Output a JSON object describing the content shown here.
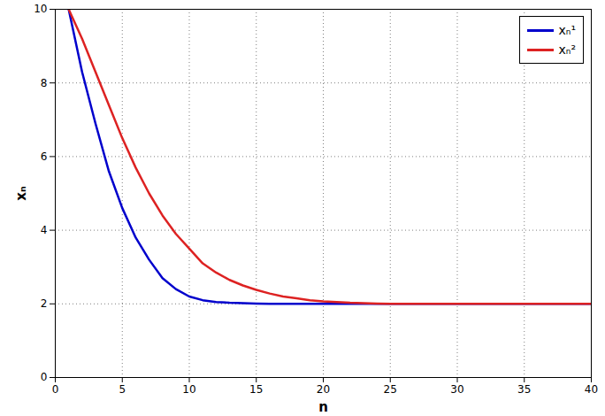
{
  "chart_data": {
    "type": "line",
    "x_label": "n",
    "y_label": "xₙ",
    "x": [
      1,
      2,
      3,
      4,
      5,
      6,
      7,
      8,
      9,
      10,
      11,
      12,
      13,
      14,
      15,
      16,
      17,
      18,
      19,
      20,
      21,
      22,
      23,
      24,
      25,
      26,
      27,
      28,
      29,
      30,
      31,
      32,
      33,
      34,
      35,
      36,
      37,
      38,
      39,
      40
    ],
    "series": [
      {
        "name": "xₙ¹",
        "color": "#0000cc",
        "values": [
          10,
          8.3,
          6.9,
          5.6,
          4.6,
          3.8,
          3.2,
          2.7,
          2.4,
          2.2,
          2.1,
          2.05,
          2.03,
          2.02,
          2.01,
          2,
          2,
          2,
          2,
          2,
          2,
          2,
          2,
          2,
          2,
          2,
          2,
          2,
          2,
          2,
          2,
          2,
          2,
          2,
          2,
          2,
          2,
          2,
          2,
          2
        ]
      },
      {
        "name": "xₙ²",
        "color": "#dd2222",
        "values": [
          10,
          9.2,
          8.3,
          7.4,
          6.5,
          5.7,
          5.0,
          4.4,
          3.9,
          3.5,
          3.1,
          2.85,
          2.65,
          2.5,
          2.38,
          2.28,
          2.2,
          2.15,
          2.1,
          2.07,
          2.05,
          2.03,
          2.02,
          2.01,
          2,
          2,
          2,
          2,
          2,
          2,
          2,
          2,
          2,
          2,
          2,
          2,
          2,
          2,
          2,
          2
        ]
      }
    ],
    "xlim": [
      0,
      40
    ],
    "xticks": [
      0,
      5,
      10,
      15,
      20,
      25,
      30,
      35,
      40
    ],
    "ylim": [
      0,
      10
    ],
    "yticks": [
      0,
      2,
      4,
      6,
      8,
      10
    ],
    "grid": true,
    "legend": "top-right"
  }
}
